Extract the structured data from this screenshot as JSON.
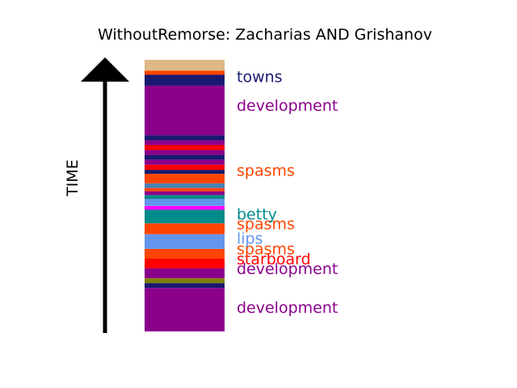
{
  "chart_data": {
    "type": "bar",
    "title": "WithoutRemorse: Zacharias AND Grishanov",
    "ylabel": "TIME",
    "ylim": [
      0,
      1
    ],
    "segments": [
      {
        "start": 0.0,
        "end": 0.16,
        "color": "#8B008B"
      },
      {
        "start": 0.16,
        "end": 0.178,
        "color": "#191970"
      },
      {
        "start": 0.178,
        "end": 0.196,
        "color": "#808000"
      },
      {
        "start": 0.196,
        "end": 0.232,
        "color": "#8B008B"
      },
      {
        "start": 0.232,
        "end": 0.268,
        "color": "#FF0000"
      },
      {
        "start": 0.268,
        "end": 0.304,
        "color": "#FF4500"
      },
      {
        "start": 0.304,
        "end": 0.358,
        "color": "#6495ED"
      },
      {
        "start": 0.358,
        "end": 0.398,
        "color": "#FF4500"
      },
      {
        "start": 0.398,
        "end": 0.448,
        "color": "#008B8B"
      },
      {
        "start": 0.448,
        "end": 0.462,
        "color": "#FF00FF"
      },
      {
        "start": 0.462,
        "end": 0.488,
        "color": "#6495ED"
      },
      {
        "start": 0.488,
        "end": 0.502,
        "color": "#008B8B"
      },
      {
        "start": 0.502,
        "end": 0.516,
        "color": "#8B008B"
      },
      {
        "start": 0.516,
        "end": 0.528,
        "color": "#FF4500"
      },
      {
        "start": 0.528,
        "end": 0.545,
        "color": "#4682B4"
      },
      {
        "start": 0.545,
        "end": 0.58,
        "color": "#FF4500"
      },
      {
        "start": 0.58,
        "end": 0.595,
        "color": "#191970"
      },
      {
        "start": 0.595,
        "end": 0.614,
        "color": "#FF0000"
      },
      {
        "start": 0.614,
        "end": 0.632,
        "color": "#8B008B"
      },
      {
        "start": 0.632,
        "end": 0.65,
        "color": "#191970"
      },
      {
        "start": 0.65,
        "end": 0.668,
        "color": "#8B008B"
      },
      {
        "start": 0.668,
        "end": 0.686,
        "color": "#FF0000"
      },
      {
        "start": 0.686,
        "end": 0.704,
        "color": "#8B008B"
      },
      {
        "start": 0.704,
        "end": 0.722,
        "color": "#191970"
      },
      {
        "start": 0.722,
        "end": 0.905,
        "color": "#8B008B"
      },
      {
        "start": 0.905,
        "end": 0.945,
        "color": "#191970"
      },
      {
        "start": 0.945,
        "end": 0.96,
        "color": "#FF4500"
      },
      {
        "start": 0.96,
        "end": 1.0,
        "color": "#DEB887"
      }
    ],
    "labels": [
      {
        "text": "development",
        "position": 0.085,
        "color": "#8B008B"
      },
      {
        "text": "development",
        "position": 0.228,
        "color": "#8B008B"
      },
      {
        "text": "starboard",
        "position": 0.264,
        "color": "#FF0000"
      },
      {
        "text": "spasms",
        "position": 0.3,
        "color": "#FF4500"
      },
      {
        "text": "lips",
        "position": 0.34,
        "color": "#6495ED"
      },
      {
        "text": "spasms",
        "position": 0.393,
        "color": "#FF4500"
      },
      {
        "text": "betty",
        "position": 0.429,
        "color": "#008B8B"
      },
      {
        "text": "spasms",
        "position": 0.59,
        "color": "#FF4500"
      },
      {
        "text": "development",
        "position": 0.829,
        "color": "#8B008B"
      },
      {
        "text": "towns",
        "position": 0.935,
        "color": "#191970"
      }
    ]
  }
}
